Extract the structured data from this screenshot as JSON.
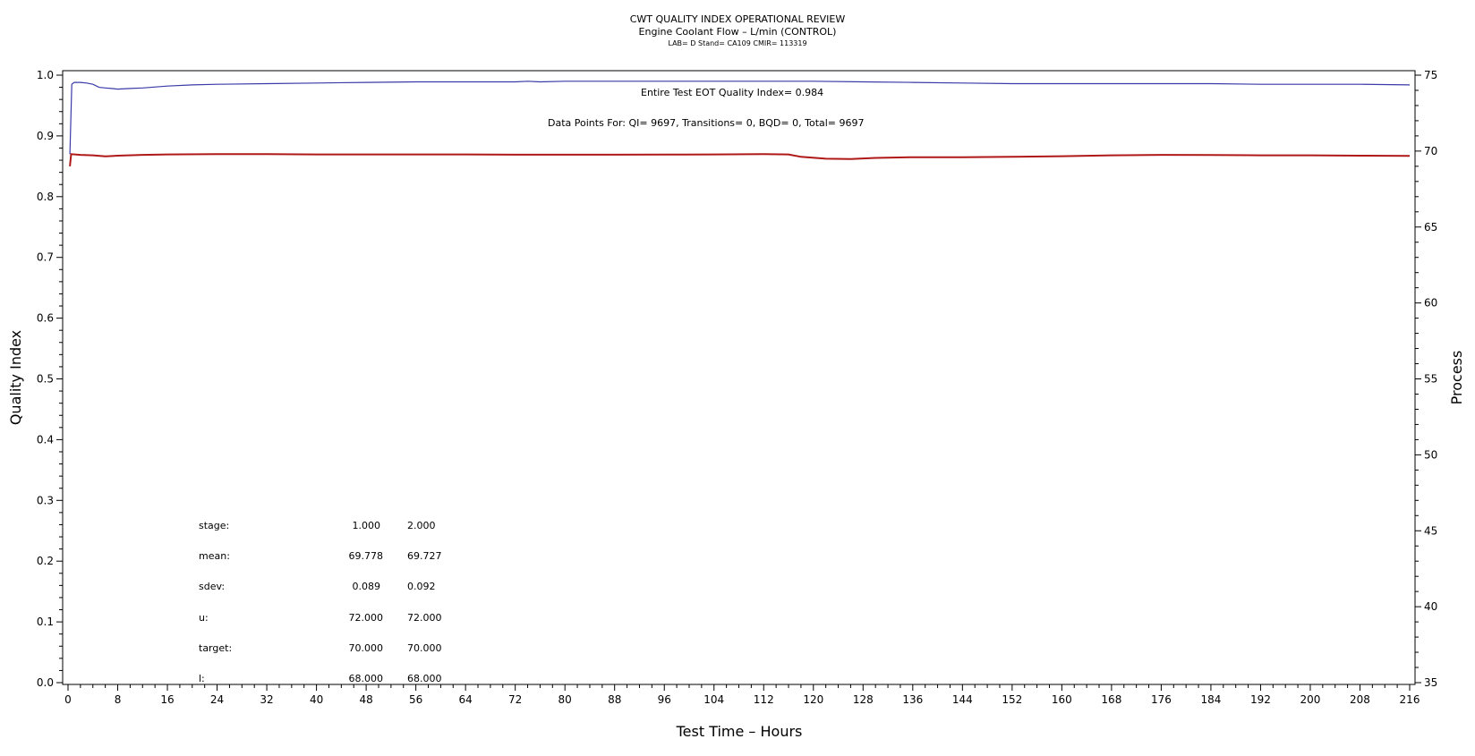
{
  "chart_data": {
    "type": "line",
    "title": "CWT QUALITY INDEX OPERATIONAL REVIEW",
    "subtitle": "Engine Coolant Flow – L/min (CONTROL)",
    "subtitle2": "LAB= D Stand= CA109 CMIR= 113319",
    "xlabel": "Test Time – Hours",
    "ylabel": "Quality Index",
    "y2label": "Process",
    "xlim": [
      0,
      216
    ],
    "ylim": [
      0.0,
      1.0
    ],
    "y2lim": [
      35,
      75
    ],
    "xticks": [
      "0",
      "8",
      "16",
      "24",
      "32",
      "40",
      "48",
      "56",
      "64",
      "72",
      "80",
      "88",
      "96",
      "104",
      "112",
      "120",
      "128",
      "136",
      "144",
      "152",
      "160",
      "168",
      "176",
      "184",
      "192",
      "200",
      "208",
      "216"
    ],
    "yticks": [
      "0.0",
      "0.1",
      "0.2",
      "0.3",
      "0.4",
      "0.5",
      "0.6",
      "0.7",
      "0.8",
      "0.9",
      "1.0"
    ],
    "y2ticks": [
      "35",
      "40",
      "45",
      "50",
      "55",
      "60",
      "65",
      "70",
      "75"
    ],
    "grid": false,
    "annotations": {
      "eot": "Entire Test EOT Quality Index=   0.984",
      "points": "Data Points For: QI=  9697, Transitions=     0, BQD=     0, Total=  9697"
    },
    "stats": {
      "stage": {
        "label": "stage:",
        "s1": "1.000",
        "s2": "2.000"
      },
      "mean": {
        "label": "mean:",
        "s1": "69.778",
        "s2": "69.727"
      },
      "sdev": {
        "label": "sdev:",
        "s1": "0.089",
        "s2": "0.092"
      },
      "u": {
        "label": "u:",
        "s1": "72.000",
        "s2": "72.000"
      },
      "target": {
        "label": "target:",
        "s1": "70.000",
        "s2": "70.000"
      },
      "l": {
        "label": "l:",
        "s1": "68.000",
        "s2": "68.000"
      }
    },
    "series": [
      {
        "axis": "left",
        "color": "#3a3aa8",
        "x": [
          0.3,
          0.6,
          1.0,
          2.0,
          3.0,
          4.0,
          5.0,
          6.0,
          7.0,
          8.0,
          10,
          12,
          16,
          20,
          24,
          32,
          40,
          48,
          56,
          64,
          72,
          74,
          76,
          80,
          88,
          96,
          104,
          112,
          120,
          128,
          136,
          144,
          152,
          160,
          168,
          176,
          184,
          192,
          200,
          208,
          216
        ],
        "y": [
          0.87,
          0.985,
          0.988,
          0.988,
          0.987,
          0.985,
          0.98,
          0.979,
          0.978,
          0.977,
          0.978,
          0.979,
          0.982,
          0.984,
          0.985,
          0.986,
          0.987,
          0.988,
          0.989,
          0.989,
          0.989,
          0.99,
          0.989,
          0.99,
          0.99,
          0.99,
          0.99,
          0.99,
          0.99,
          0.989,
          0.988,
          0.987,
          0.986,
          0.986,
          0.986,
          0.986,
          0.986,
          0.985,
          0.985,
          0.985,
          0.984
        ]
      },
      {
        "axis": "right",
        "color": "#b01818",
        "x": [
          0.3,
          0.5,
          2,
          4,
          6,
          8,
          12,
          16,
          24,
          32,
          40,
          48,
          56,
          64,
          72,
          80,
          88,
          96,
          104,
          112,
          116,
          118,
          122,
          126,
          130,
          136,
          144,
          152,
          160,
          168,
          176,
          184,
          192,
          200,
          208,
          216
        ],
        "y": [
          69.0,
          69.8,
          69.75,
          69.72,
          69.65,
          69.7,
          69.75,
          69.78,
          69.8,
          69.8,
          69.78,
          69.78,
          69.78,
          69.78,
          69.76,
          69.76,
          69.76,
          69.77,
          69.78,
          69.8,
          69.78,
          69.62,
          69.5,
          69.48,
          69.55,
          69.6,
          69.6,
          69.62,
          69.66,
          69.72,
          69.75,
          69.74,
          69.72,
          69.72,
          69.7,
          69.68
        ]
      }
    ]
  }
}
